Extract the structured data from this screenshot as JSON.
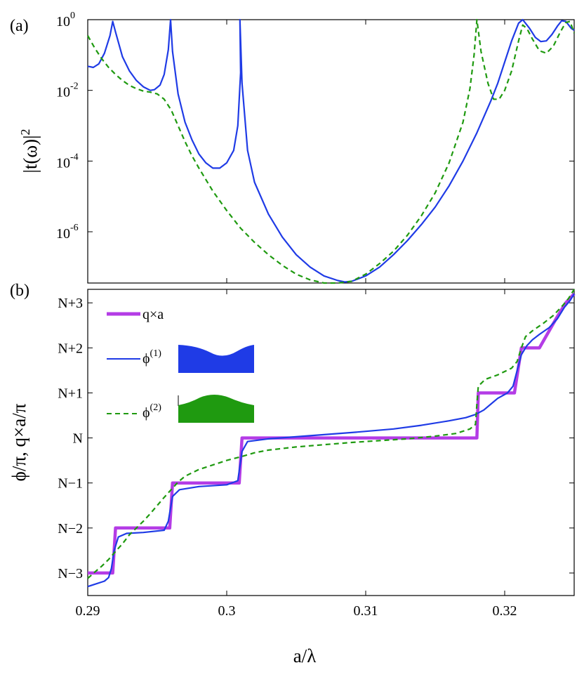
{
  "colors": {
    "q_times_a": "#B43CE6",
    "phi1": "#1F3BE6",
    "phi2": "#1F9A10",
    "frame": "#000000"
  },
  "chart_data": [
    {
      "panel": "(a)",
      "type": "line",
      "xlim": [
        0.29,
        0.325
      ],
      "ylim_log10": [
        -7.45,
        0
      ],
      "yscale": "log",
      "ylabel": "|t(ω)|²",
      "ytick_labels": [
        {
          "base": "10",
          "exp": "0",
          "log10": 0
        },
        {
          "base": "10",
          "exp": "-2",
          "log10": -2
        },
        {
          "base": "10",
          "exp": "-4",
          "log10": -4
        },
        {
          "base": "10",
          "exp": "-6",
          "log10": -6
        }
      ],
      "xticks": [
        0.3,
        0.31,
        0.32
      ],
      "series": [
        {
          "name": "φ(1)",
          "style": "solid",
          "points": [
            [
              0.29,
              -1.32
            ],
            [
              0.2904,
              -1.35
            ],
            [
              0.2908,
              -1.25
            ],
            [
              0.2912,
              -0.95
            ],
            [
              0.2916,
              -0.45
            ],
            [
              0.2918,
              -0.05
            ],
            [
              0.292,
              -0.35
            ],
            [
              0.2925,
              -1.05
            ],
            [
              0.293,
              -1.45
            ],
            [
              0.2935,
              -1.72
            ],
            [
              0.294,
              -1.9
            ],
            [
              0.2945,
              -2.0
            ],
            [
              0.2948,
              -1.98
            ],
            [
              0.2952,
              -1.85
            ],
            [
              0.2955,
              -1.55
            ],
            [
              0.2958,
              -0.85
            ],
            [
              0.29596,
              0.0
            ],
            [
              0.2961,
              -0.9
            ],
            [
              0.2965,
              -2.1
            ],
            [
              0.297,
              -2.9
            ],
            [
              0.2975,
              -3.4
            ],
            [
              0.298,
              -3.8
            ],
            [
              0.2985,
              -4.05
            ],
            [
              0.299,
              -4.2
            ],
            [
              0.2995,
              -4.2
            ],
            [
              0.3,
              -4.05
            ],
            [
              0.3005,
              -3.7
            ],
            [
              0.3008,
              -3.0
            ],
            [
              0.301,
              -1.5
            ],
            [
              0.30095,
              0.0
            ],
            [
              0.3011,
              -1.8
            ],
            [
              0.3015,
              -3.7
            ],
            [
              0.302,
              -4.6
            ],
            [
              0.303,
              -5.5
            ],
            [
              0.304,
              -6.15
            ],
            [
              0.305,
              -6.65
            ],
            [
              0.306,
              -7.0
            ],
            [
              0.307,
              -7.25
            ],
            [
              0.308,
              -7.38
            ],
            [
              0.3085,
              -7.42
            ],
            [
              0.309,
              -7.4
            ],
            [
              0.31,
              -7.25
            ],
            [
              0.311,
              -7.0
            ],
            [
              0.312,
              -6.65
            ],
            [
              0.313,
              -6.25
            ],
            [
              0.314,
              -5.8
            ],
            [
              0.315,
              -5.3
            ],
            [
              0.316,
              -4.7
            ],
            [
              0.317,
              -4.0
            ],
            [
              0.318,
              -3.2
            ],
            [
              0.319,
              -2.3
            ],
            [
              0.3195,
              -1.8
            ],
            [
              0.32,
              -1.2
            ],
            [
              0.3205,
              -0.6
            ],
            [
              0.321,
              -0.1
            ],
            [
              0.3213,
              0.0
            ],
            [
              0.3218,
              -0.25
            ],
            [
              0.3222,
              -0.5
            ],
            [
              0.3226,
              -0.62
            ],
            [
              0.323,
              -0.6
            ],
            [
              0.3234,
              -0.42
            ],
            [
              0.3238,
              -0.18
            ],
            [
              0.3241,
              -0.03
            ],
            [
              0.3244,
              -0.05
            ],
            [
              0.3248,
              -0.25
            ],
            [
              0.325,
              -0.3
            ]
          ]
        },
        {
          "name": "φ(2)",
          "style": "dashed",
          "points": [
            [
              0.29,
              -0.45
            ],
            [
              0.2905,
              -0.8
            ],
            [
              0.291,
              -1.1
            ],
            [
              0.2915,
              -1.35
            ],
            [
              0.292,
              -1.55
            ],
            [
              0.2925,
              -1.72
            ],
            [
              0.293,
              -1.86
            ],
            [
              0.2935,
              -1.95
            ],
            [
              0.294,
              -2.02
            ],
            [
              0.2945,
              -2.05
            ],
            [
              0.295,
              -2.1
            ],
            [
              0.2955,
              -2.25
            ],
            [
              0.296,
              -2.55
            ],
            [
              0.2965,
              -3.0
            ],
            [
              0.297,
              -3.45
            ],
            [
              0.2975,
              -3.85
            ],
            [
              0.298,
              -4.2
            ],
            [
              0.299,
              -4.85
            ],
            [
              0.3,
              -5.4
            ],
            [
              0.301,
              -5.9
            ],
            [
              0.302,
              -6.3
            ],
            [
              0.303,
              -6.65
            ],
            [
              0.304,
              -6.95
            ],
            [
              0.305,
              -7.2
            ],
            [
              0.306,
              -7.36
            ],
            [
              0.307,
              -7.45
            ],
            [
              0.308,
              -7.45
            ],
            [
              0.309,
              -7.4
            ],
            [
              0.31,
              -7.2
            ],
            [
              0.311,
              -6.9
            ],
            [
              0.312,
              -6.55
            ],
            [
              0.313,
              -6.1
            ],
            [
              0.314,
              -5.55
            ],
            [
              0.315,
              -4.9
            ],
            [
              0.316,
              -4.05
            ],
            [
              0.317,
              -2.9
            ],
            [
              0.3175,
              -1.95
            ],
            [
              0.3178,
              -1.0
            ],
            [
              0.318,
              0.0
            ],
            [
              0.3183,
              -0.9
            ],
            [
              0.3188,
              -1.8
            ],
            [
              0.3192,
              -2.25
            ],
            [
              0.3196,
              -2.25
            ],
            [
              0.32,
              -2.0
            ],
            [
              0.3205,
              -1.45
            ],
            [
              0.321,
              -0.6
            ],
            [
              0.3213,
              -0.15
            ],
            [
              0.3216,
              -0.25
            ],
            [
              0.322,
              -0.55
            ],
            [
              0.3225,
              -0.88
            ],
            [
              0.323,
              -0.95
            ],
            [
              0.3235,
              -0.75
            ],
            [
              0.324,
              -0.35
            ],
            [
              0.3244,
              -0.08
            ],
            [
              0.3247,
              -0.05
            ],
            [
              0.325,
              -0.38
            ]
          ]
        }
      ]
    },
    {
      "panel": "(b)",
      "type": "line",
      "xlim": [
        0.29,
        0.325
      ],
      "ylim": [
        -3.5,
        3.3
      ],
      "xlabel": "a/λ",
      "ylabel": "ϕ/π, q×a/π",
      "xtick_labels": [
        {
          "value": 0.29,
          "label": "0.29"
        },
        {
          "value": 0.3,
          "label": "0.3"
        },
        {
          "value": 0.31,
          "label": "0.31"
        },
        {
          "value": 0.32,
          "label": "0.32"
        }
      ],
      "ytick_labels": [
        {
          "value": 3,
          "label": "N+3"
        },
        {
          "value": 2,
          "label": "N+2"
        },
        {
          "value": 1,
          "label": "N+1"
        },
        {
          "value": 0,
          "label": "N"
        },
        {
          "value": -1,
          "label": "N−1"
        },
        {
          "value": -2,
          "label": "N−2"
        },
        {
          "value": -3,
          "label": "N−3"
        }
      ],
      "legend": {
        "position": "top-left",
        "entries": [
          {
            "label": "q×a",
            "style": "thick-solid"
          },
          {
            "base": "ϕ",
            "sup": "(1)",
            "style": "solid"
          },
          {
            "base": "ϕ",
            "sup": "(2)",
            "style": "dashed"
          }
        ]
      },
      "series": [
        {
          "name": "q×a",
          "style": "thick",
          "points": [
            [
              0.29,
              -3.0
            ],
            [
              0.2915,
              -3.0
            ],
            [
              0.2918,
              -3.0
            ],
            [
              0.292,
              -2.0
            ],
            [
              0.2959,
              -2.0
            ],
            [
              0.2961,
              -1.0
            ],
            [
              0.3009,
              -1.0
            ],
            [
              0.3011,
              0.0
            ],
            [
              0.318,
              0.0
            ],
            [
              0.3181,
              1.0
            ],
            [
              0.3207,
              1.0
            ],
            [
              0.3212,
              2.0
            ],
            [
              0.3225,
              2.0
            ],
            [
              0.3237,
              2.65
            ],
            [
              0.3244,
              3.0
            ],
            [
              0.325,
              3.2
            ]
          ]
        },
        {
          "name": "ϕ(1)",
          "style": "solid",
          "points": [
            [
              0.29,
              -3.3
            ],
            [
              0.2912,
              -3.18
            ],
            [
              0.2915,
              -3.1
            ],
            [
              0.2917,
              -2.9
            ],
            [
              0.2919,
              -2.5
            ],
            [
              0.2922,
              -2.2
            ],
            [
              0.2928,
              -2.12
            ],
            [
              0.294,
              -2.1
            ],
            [
              0.2955,
              -2.05
            ],
            [
              0.2958,
              -1.85
            ],
            [
              0.2961,
              -1.3
            ],
            [
              0.2966,
              -1.15
            ],
            [
              0.298,
              -1.08
            ],
            [
              0.3,
              -1.04
            ],
            [
              0.3008,
              -0.95
            ],
            [
              0.3011,
              -0.3
            ],
            [
              0.3015,
              -0.08
            ],
            [
              0.303,
              -0.02
            ],
            [
              0.306,
              0.05
            ],
            [
              0.309,
              0.12
            ],
            [
              0.312,
              0.2
            ],
            [
              0.314,
              0.28
            ],
            [
              0.316,
              0.38
            ],
            [
              0.3172,
              0.45
            ],
            [
              0.3179,
              0.52
            ],
            [
              0.3185,
              0.62
            ],
            [
              0.319,
              0.75
            ],
            [
              0.3195,
              0.88
            ],
            [
              0.3202,
              1.0
            ],
            [
              0.3206,
              1.15
            ],
            [
              0.3209,
              1.5
            ],
            [
              0.3212,
              1.85
            ],
            [
              0.3216,
              2.05
            ],
            [
              0.322,
              2.18
            ],
            [
              0.3225,
              2.3
            ],
            [
              0.3232,
              2.45
            ],
            [
              0.3238,
              2.65
            ],
            [
              0.3243,
              2.9
            ],
            [
              0.3247,
              3.05
            ],
            [
              0.325,
              3.2
            ]
          ]
        },
        {
          "name": "ϕ(2)",
          "style": "dashed",
          "points": [
            [
              0.29,
              -3.12
            ],
            [
              0.2905,
              -2.98
            ],
            [
              0.291,
              -2.85
            ],
            [
              0.2915,
              -2.7
            ],
            [
              0.292,
              -2.52
            ],
            [
              0.2925,
              -2.35
            ],
            [
              0.293,
              -2.15
            ],
            [
              0.2935,
              -2.0
            ],
            [
              0.294,
              -1.85
            ],
            [
              0.2945,
              -1.68
            ],
            [
              0.295,
              -1.5
            ],
            [
              0.2955,
              -1.32
            ],
            [
              0.296,
              -1.15
            ],
            [
              0.2965,
              -0.98
            ],
            [
              0.297,
              -0.85
            ],
            [
              0.298,
              -0.7
            ],
            [
              0.299,
              -0.6
            ],
            [
              0.3,
              -0.5
            ],
            [
              0.301,
              -0.42
            ],
            [
              0.302,
              -0.33
            ],
            [
              0.303,
              -0.27
            ],
            [
              0.305,
              -0.2
            ],
            [
              0.307,
              -0.15
            ],
            [
              0.309,
              -0.1
            ],
            [
              0.311,
              -0.06
            ],
            [
              0.313,
              -0.02
            ],
            [
              0.315,
              0.04
            ],
            [
              0.3165,
              0.1
            ],
            [
              0.3175,
              0.2
            ],
            [
              0.3179,
              0.3
            ],
            [
              0.318,
              0.75
            ],
            [
              0.3181,
              1.15
            ],
            [
              0.3186,
              1.3
            ],
            [
              0.3195,
              1.4
            ],
            [
              0.3205,
              1.55
            ],
            [
              0.3209,
              1.7
            ],
            [
              0.3212,
              2.0
            ],
            [
              0.3215,
              2.25
            ],
            [
              0.322,
              2.38
            ],
            [
              0.3228,
              2.55
            ],
            [
              0.3235,
              2.72
            ],
            [
              0.3242,
              2.95
            ],
            [
              0.3246,
              3.1
            ],
            [
              0.325,
              3.3
            ]
          ]
        }
      ]
    }
  ]
}
